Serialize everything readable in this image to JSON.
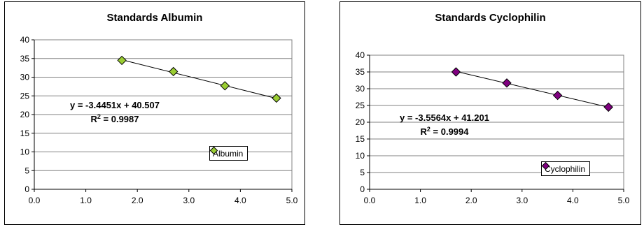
{
  "chart_data": [
    {
      "type": "scatter",
      "title": "Standards Albumin",
      "xlim": [
        0,
        5
      ],
      "ylim": [
        0,
        40
      ],
      "xticks": [
        "0.0",
        "1.0",
        "2.0",
        "3.0",
        "4.0",
        "5.0"
      ],
      "yticks": [
        "0",
        "5",
        "10",
        "15",
        "20",
        "25",
        "30",
        "35",
        "40"
      ],
      "grid": "horizontal",
      "legend_position": "bottom-right",
      "series": [
        {
          "name": "Albumin",
          "color": "#9ACD32",
          "marker": "diamond",
          "x": [
            1.7,
            2.7,
            3.7,
            4.7
          ],
          "y": [
            34.5,
            31.5,
            27.7,
            24.4
          ]
        }
      ],
      "trendline": {
        "slope": -3.4451,
        "intercept": 40.507,
        "equation": "y = -3.4451x + 40.507",
        "r2_prefix": "R",
        "r2_sup": "2",
        "r2_value": " = 0.9987"
      }
    },
    {
      "type": "scatter",
      "title": "Standards Cyclophilin",
      "xlim": [
        0,
        5
      ],
      "ylim": [
        0,
        40
      ],
      "xticks": [
        "0.0",
        "1.0",
        "2.0",
        "3.0",
        "4.0",
        "5.0"
      ],
      "yticks": [
        "0",
        "5",
        "10",
        "15",
        "20",
        "25",
        "30",
        "35",
        "40"
      ],
      "grid": "horizontal",
      "legend_position": "bottom-right",
      "series": [
        {
          "name": "Cyclophilin",
          "color": "#800080",
          "marker": "diamond",
          "x": [
            1.7,
            2.7,
            3.7,
            4.7
          ],
          "y": [
            35.0,
            31.7,
            28.0,
            24.5
          ]
        }
      ],
      "trendline": {
        "slope": -3.5564,
        "intercept": 41.201,
        "equation": "y = -3.5564x + 41.201",
        "r2_prefix": "R",
        "r2_sup": "2",
        "r2_value": " = 0.9994"
      }
    }
  ]
}
